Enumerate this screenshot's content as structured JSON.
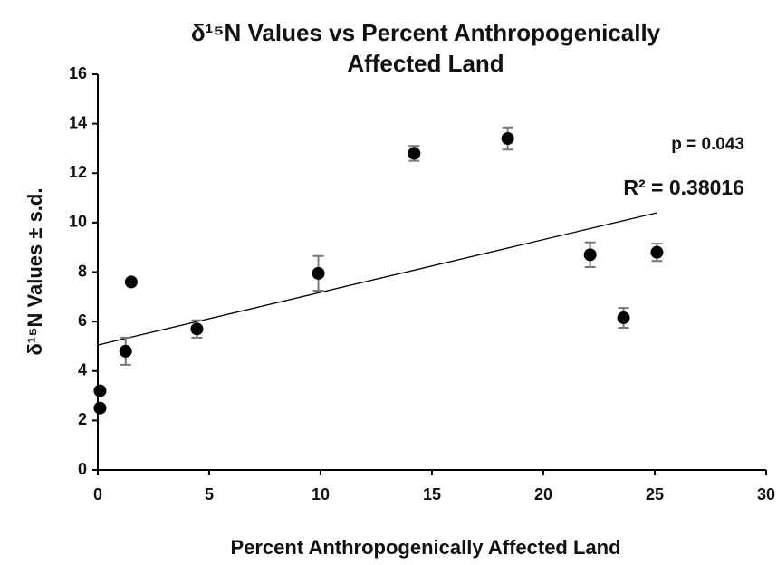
{
  "chart_data": {
    "type": "scatter",
    "title": [
      "δ¹⁵N Values vs Percent Anthropogenically",
      "Affected Land"
    ],
    "x_label": "Percent Anthropogenically Affected Land",
    "y_label": "δ¹⁵N   Values ± s.d.",
    "x": [
      0.1,
      0.1,
      1.25,
      1.5,
      4.45,
      9.9,
      14.2,
      18.4,
      22.1,
      23.6,
      25.1
    ],
    "values": [
      3.2,
      2.5,
      4.8,
      7.6,
      5.7,
      7.95,
      12.8,
      13.4,
      8.7,
      6.15,
      8.8
    ],
    "errors": [
      0.1,
      0.1,
      0.55,
      0.1,
      0.35,
      0.7,
      0.3,
      0.45,
      0.5,
      0.4,
      0.35
    ],
    "color": "#000000",
    "trendline": {
      "x": [
        0,
        25.1
      ],
      "y": [
        5.05,
        10.4
      ]
    },
    "annotations": [
      "p = 0.043",
      "R² = 0.38016"
    ],
    "xlim": [
      0,
      30
    ],
    "xticks": [
      0,
      5,
      10,
      15,
      20,
      25,
      30
    ],
    "ylim": [
      0,
      16
    ],
    "yticks": [
      0,
      2,
      4,
      6,
      8,
      10,
      12,
      14,
      16
    ],
    "grid": false
  }
}
